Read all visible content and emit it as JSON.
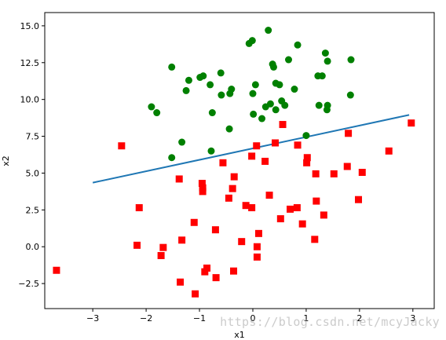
{
  "chart_data": {
    "type": "scatter",
    "xlabel": "x1",
    "ylabel": "x2",
    "xlim": [
      -3.9,
      3.4
    ],
    "ylim": [
      -4.2,
      15.9
    ],
    "xticks": [
      -3,
      -2,
      -1,
      0,
      1,
      2,
      3
    ],
    "xtick_labels": [
      "−3",
      "−2",
      "−1",
      "0",
      "1",
      "2",
      "3"
    ],
    "yticks": [
      -2.5,
      0.0,
      2.5,
      5.0,
      7.5,
      10.0,
      12.5,
      15.0
    ],
    "ytick_labels": [
      "−2.5",
      "0.0",
      "2.5",
      "5.0",
      "7.5",
      "10.0",
      "12.5",
      "15.0"
    ],
    "grid": false,
    "series": [
      {
        "marker": "circle",
        "color": "#008000",
        "points": [
          [
            0.29,
            14.7
          ],
          [
            -0.01,
            14.0
          ],
          [
            -0.07,
            13.8
          ],
          [
            0.84,
            13.7
          ],
          [
            1.36,
            13.15
          ],
          [
            0.37,
            12.4
          ],
          [
            0.39,
            12.2
          ],
          [
            0.67,
            12.7
          ],
          [
            1.4,
            12.6
          ],
          [
            1.84,
            12.7
          ],
          [
            -1.52,
            12.2
          ],
          [
            -1.2,
            11.3
          ],
          [
            -0.99,
            11.5
          ],
          [
            -0.93,
            11.6
          ],
          [
            -0.6,
            11.8
          ],
          [
            -0.8,
            11.0
          ],
          [
            0.05,
            11.0
          ],
          [
            0.43,
            11.1
          ],
          [
            0.5,
            11.0
          ],
          [
            1.22,
            11.6
          ],
          [
            1.3,
            11.6
          ],
          [
            0.78,
            10.7
          ],
          [
            -0.4,
            10.7
          ],
          [
            -0.43,
            10.4
          ],
          [
            -0.59,
            10.3
          ],
          [
            -1.25,
            10.6
          ],
          [
            0.0,
            10.4
          ],
          [
            0.54,
            9.9
          ],
          [
            1.83,
            10.3
          ],
          [
            -1.9,
            9.5
          ],
          [
            -1.8,
            9.1
          ],
          [
            -0.76,
            9.1
          ],
          [
            0.24,
            9.5
          ],
          [
            0.33,
            9.7
          ],
          [
            0.43,
            9.3
          ],
          [
            0.6,
            9.6
          ],
          [
            1.24,
            9.6
          ],
          [
            1.4,
            9.6
          ],
          [
            1.39,
            9.3
          ],
          [
            0.01,
            9.0
          ],
          [
            0.17,
            8.7
          ],
          [
            -0.44,
            8.0
          ],
          [
            1.0,
            7.55
          ],
          [
            -1.33,
            7.1
          ],
          [
            -0.78,
            6.5
          ],
          [
            -1.52,
            6.05
          ]
        ]
      },
      {
        "marker": "square",
        "color": "#ff0000",
        "points": [
          [
            2.97,
            8.4
          ],
          [
            0.56,
            8.3
          ],
          [
            1.79,
            7.7
          ],
          [
            0.42,
            7.05
          ],
          [
            0.84,
            6.9
          ],
          [
            -2.46,
            6.85
          ],
          [
            0.07,
            6.85
          ],
          [
            2.55,
            6.5
          ],
          [
            -0.02,
            6.15
          ],
          [
            1.02,
            6.05
          ],
          [
            0.23,
            5.8
          ],
          [
            -0.56,
            5.7
          ],
          [
            1.01,
            5.7
          ],
          [
            1.77,
            5.45
          ],
          [
            2.05,
            5.05
          ],
          [
            1.52,
            4.95
          ],
          [
            1.18,
            4.95
          ],
          [
            -0.35,
            4.75
          ],
          [
            -1.38,
            4.6
          ],
          [
            -0.95,
            4.3
          ],
          [
            -0.94,
            4.0
          ],
          [
            -0.38,
            3.95
          ],
          [
            -0.94,
            3.75
          ],
          [
            0.31,
            3.5
          ],
          [
            -0.45,
            3.3
          ],
          [
            1.19,
            3.1
          ],
          [
            1.98,
            3.2
          ],
          [
            -0.13,
            2.8
          ],
          [
            -0.02,
            2.65
          ],
          [
            -2.13,
            2.65
          ],
          [
            0.7,
            2.55
          ],
          [
            0.83,
            2.65
          ],
          [
            1.33,
            2.15
          ],
          [
            0.52,
            1.9
          ],
          [
            -1.1,
            1.65
          ],
          [
            0.93,
            1.55
          ],
          [
            -0.7,
            1.15
          ],
          [
            0.11,
            0.9
          ],
          [
            1.16,
            0.5
          ],
          [
            -1.33,
            0.45
          ],
          [
            -0.21,
            0.35
          ],
          [
            -2.17,
            0.1
          ],
          [
            0.08,
            0.0
          ],
          [
            -1.68,
            -0.05
          ],
          [
            -1.72,
            -0.6
          ],
          [
            0.08,
            -0.7
          ],
          [
            -0.86,
            -1.45
          ],
          [
            -3.68,
            -1.6
          ],
          [
            -0.36,
            -1.65
          ],
          [
            -0.9,
            -1.7
          ],
          [
            -0.69,
            -2.1
          ],
          [
            -1.36,
            -2.4
          ],
          [
            -1.08,
            -3.2
          ]
        ]
      }
    ],
    "lines": [
      {
        "color": "#1f77b4",
        "points": [
          [
            -3.0,
            4.35
          ],
          [
            2.93,
            8.95
          ]
        ]
      }
    ]
  },
  "watermark": "https://blog.csdn.net/mcyJacky"
}
